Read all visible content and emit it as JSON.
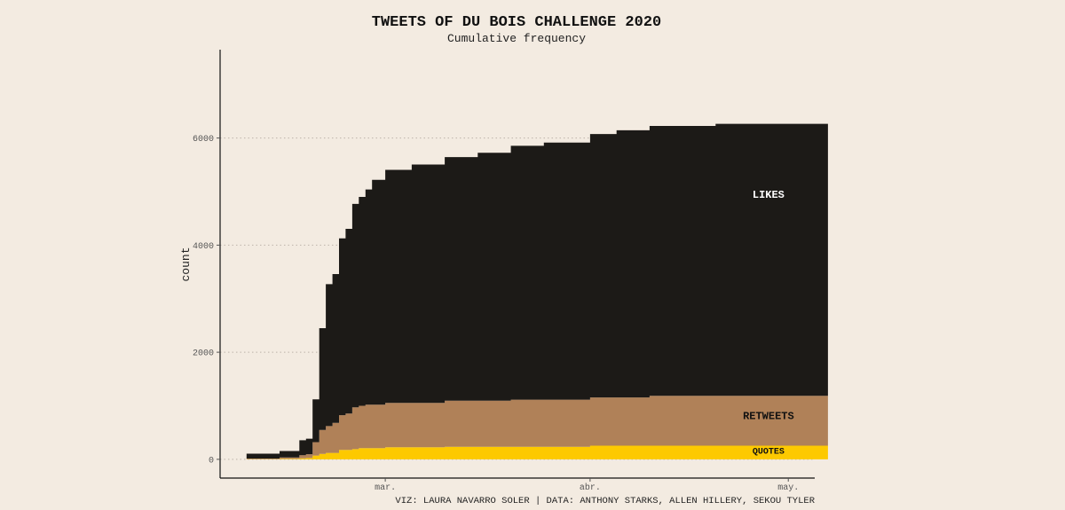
{
  "chart_data": {
    "type": "area",
    "title": "TWEETS OF DU BOIS CHALLENGE 2020",
    "subtitle": "Cumulative frequency",
    "ylabel": "count",
    "xlabel": "",
    "caption": "VIZ: LAURA NAVARRO SOLER | DATA:  ANTHONY STARKS, ALLEN HILLERY, SEKOU TYLER",
    "x_ticks": [
      {
        "label": "mar.",
        "date": "2020-03-01"
      },
      {
        "label": "abr.",
        "date": "2020-04-01"
      },
      {
        "label": "may.",
        "date": "2020-05-01"
      }
    ],
    "y_ticks": [
      0,
      2000,
      4000,
      6000
    ],
    "xlim": [
      "2020-02-05",
      "2020-05-05"
    ],
    "ylim": [
      -350,
      7650
    ],
    "stacked": true,
    "grid": "horizontal-dotted",
    "series": [
      {
        "name": "QUOTES",
        "color": "#fdc900",
        "label_color": "#111111",
        "label_date": "2020-04-28",
        "label_value": 170,
        "points": [
          [
            "2020-02-09",
            5
          ],
          [
            "2020-02-14",
            5
          ],
          [
            "2020-02-14",
            10
          ],
          [
            "2020-02-17",
            12
          ],
          [
            "2020-02-17",
            20
          ],
          [
            "2020-02-18",
            25
          ],
          [
            "2020-02-19",
            40
          ],
          [
            "2020-02-19",
            70
          ],
          [
            "2020-02-20",
            100
          ],
          [
            "2020-02-21",
            120
          ],
          [
            "2020-02-23",
            140
          ],
          [
            "2020-02-23",
            175
          ],
          [
            "2020-02-25",
            190
          ],
          [
            "2020-02-26",
            210
          ],
          [
            "2020-03-01",
            225
          ],
          [
            "2020-03-10",
            235
          ],
          [
            "2020-04-01",
            255
          ],
          [
            "2020-05-07",
            270
          ]
        ]
      },
      {
        "name": "RETWEETS",
        "color": "#b08158",
        "label_color": "#111111",
        "label_date": "2020-04-28",
        "label_value": 820,
        "points": [
          [
            "2020-02-09",
            10
          ],
          [
            "2020-02-14",
            10
          ],
          [
            "2020-02-14",
            25
          ],
          [
            "2020-02-17",
            30
          ],
          [
            "2020-02-17",
            55
          ],
          [
            "2020-02-18",
            70
          ],
          [
            "2020-02-19",
            120
          ],
          [
            "2020-02-19",
            250
          ],
          [
            "2020-02-20",
            300
          ],
          [
            "2020-02-20",
            450
          ],
          [
            "2020-02-21",
            500
          ],
          [
            "2020-02-22",
            560
          ],
          [
            "2020-02-23",
            590
          ],
          [
            "2020-02-23",
            650
          ],
          [
            "2020-02-24",
            680
          ],
          [
            "2020-02-25",
            720
          ],
          [
            "2020-02-25",
            780
          ],
          [
            "2020-02-26",
            790
          ],
          [
            "2020-02-27",
            810
          ],
          [
            "2020-03-01",
            830
          ],
          [
            "2020-03-10",
            860
          ],
          [
            "2020-03-20",
            880
          ],
          [
            "2020-04-01",
            900
          ],
          [
            "2020-04-10",
            930
          ],
          [
            "2020-05-07",
            950
          ]
        ]
      },
      {
        "name": "LIKES",
        "color": "#1c1a17",
        "label_color": "#ffffff",
        "label_date": "2020-04-28",
        "label_value": 4950,
        "points": [
          [
            "2020-02-09",
            90
          ],
          [
            "2020-02-14",
            90
          ],
          [
            "2020-02-14",
            120
          ],
          [
            "2020-02-17",
            120
          ],
          [
            "2020-02-17",
            280
          ],
          [
            "2020-02-18",
            290
          ],
          [
            "2020-02-19",
            500
          ],
          [
            "2020-02-19",
            800
          ],
          [
            "2020-02-20",
            1300
          ],
          [
            "2020-02-20",
            1900
          ],
          [
            "2020-02-21",
            2400
          ],
          [
            "2020-02-21",
            2650
          ],
          [
            "2020-02-22",
            2780
          ],
          [
            "2020-02-23",
            2900
          ],
          [
            "2020-02-23",
            3300
          ],
          [
            "2020-02-24",
            3450
          ],
          [
            "2020-02-25",
            3550
          ],
          [
            "2020-02-25",
            3800
          ],
          [
            "2020-02-26",
            3900
          ],
          [
            "2020-02-27",
            4020
          ],
          [
            "2020-02-28",
            4200
          ],
          [
            "2020-03-01",
            4350
          ],
          [
            "2020-03-05",
            4450
          ],
          [
            "2020-03-10",
            4550
          ],
          [
            "2020-03-15",
            4630
          ],
          [
            "2020-03-20",
            4740
          ],
          [
            "2020-03-25",
            4800
          ],
          [
            "2020-04-01",
            4920
          ],
          [
            "2020-04-05",
            4990
          ],
          [
            "2020-04-10",
            5040
          ],
          [
            "2020-04-20",
            5080
          ],
          [
            "2020-05-07",
            5130
          ]
        ]
      }
    ]
  }
}
